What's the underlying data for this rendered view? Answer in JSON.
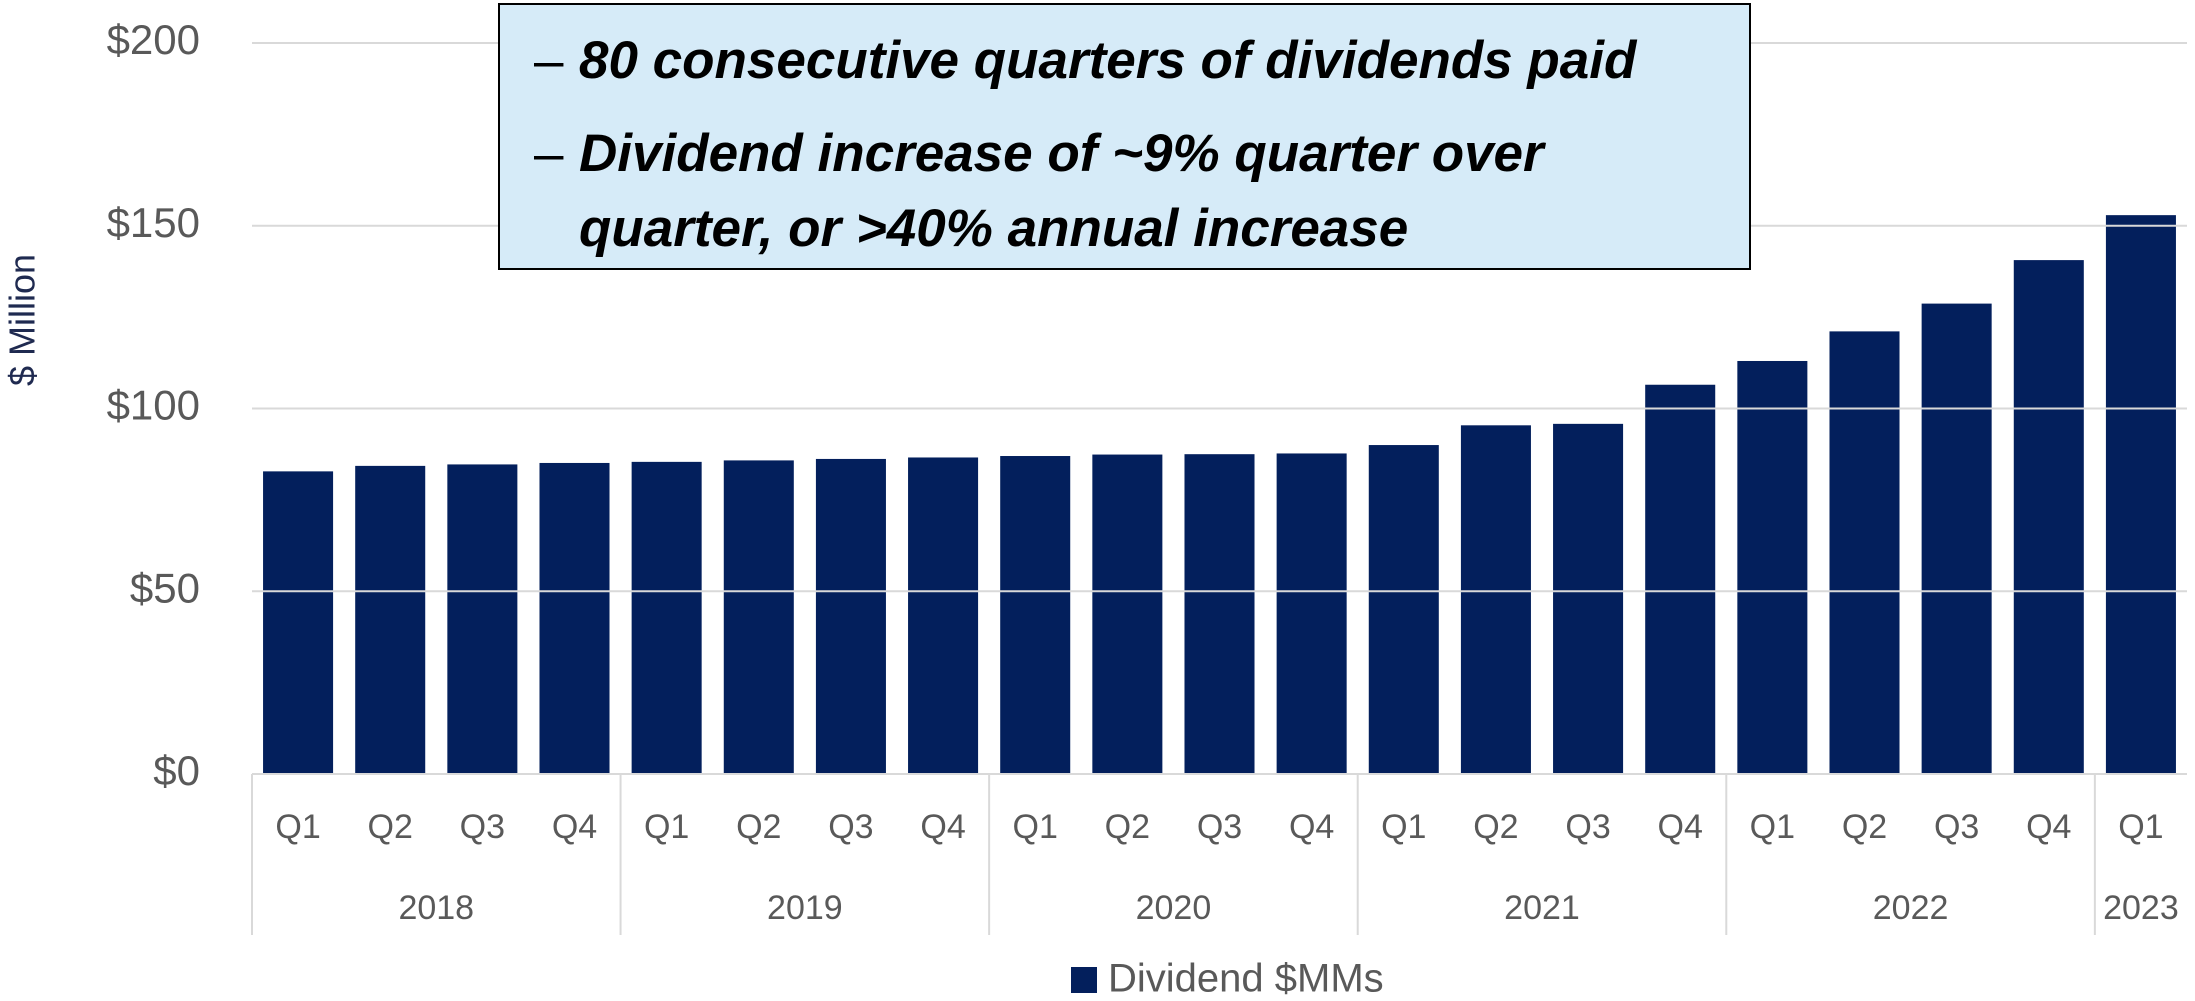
{
  "chart_data": {
    "type": "bar",
    "y_axis_label": "$ Million",
    "groups": [
      {
        "label": "2018",
        "categories": [
          "Q1",
          "Q2",
          "Q3",
          "Q4"
        ]
      },
      {
        "label": "2019",
        "categories": [
          "Q1",
          "Q2",
          "Q3",
          "Q4"
        ]
      },
      {
        "label": "2020",
        "categories": [
          "Q1",
          "Q2",
          "Q3",
          "Q4"
        ]
      },
      {
        "label": "2021",
        "categories": [
          "Q1",
          "Q2",
          "Q3",
          "Q4"
        ]
      },
      {
        "label": "2022",
        "categories": [
          "Q1",
          "Q2",
          "Q3",
          "Q4"
        ]
      },
      {
        "label": "2023",
        "categories": [
          "Q1"
        ]
      }
    ],
    "series": [
      {
        "name": "Dividend $MMs",
        "color": "#031f5c",
        "values": [
          82.8,
          84.3,
          84.7,
          85.1,
          85.4,
          85.8,
          86.2,
          86.6,
          87.0,
          87.4,
          87.5,
          87.7,
          90.0,
          95.4,
          95.8,
          106.5,
          113.0,
          121.1,
          128.7,
          140.6,
          152.9
        ]
      }
    ],
    "ylim": [
      0,
      200
    ],
    "yticks": [
      {
        "value": 0,
        "label": "$0"
      },
      {
        "value": 50,
        "label": "$50"
      },
      {
        "value": 100,
        "label": "$100"
      },
      {
        "value": 150,
        "label": "$150"
      },
      {
        "value": 200,
        "label": "$200"
      }
    ],
    "grid": true,
    "legend": "bottom",
    "annotation": [
      "80 consecutive quarters of dividends paid",
      "Dividend increase of ~9% quarter over quarter, or >40% annual increase"
    ]
  }
}
